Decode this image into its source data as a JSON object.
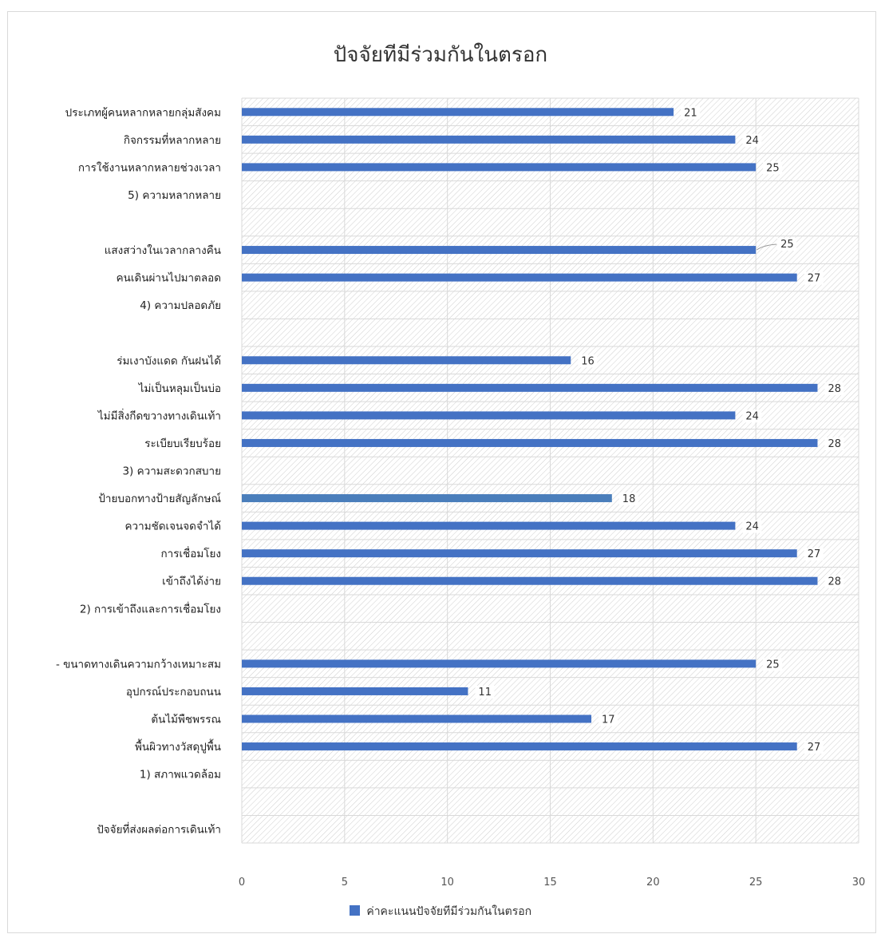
{
  "chart_data": {
    "type": "bar",
    "orientation": "horizontal",
    "title": "ปัจจัยทีมีร่วมกันในตรอก",
    "categories": [
      "ประเภทผู้คนหลากหลายกลุ่มสังคม",
      "กิจกรรมที่หลากหลาย",
      "การใช้งานหลากหลายช่วงเวลา",
      "5) ความหลากหลาย",
      "",
      "แสงสว่างในเวลากลางคืน",
      "คนเดินผ่านไปมาตลอด",
      "4) ความปลอดภัย",
      "",
      "ร่มเงาบังแดด กันฝนได้",
      "ไม่เป็นหลุมเป็นบ่อ",
      "ไม่มีสิ่งกีดขวางทางเดินเท้า",
      "ระเบียบเรียบร้อย",
      "3) ความสะดวกสบาย",
      "ป้ายบอกทางป้ายสัญลักษณ์",
      "ความชัดเจนจดจำได้",
      "การเชื่อมโยง",
      "เข้าถึงได้ง่าย",
      "2) การเข้าถึงและการเชื่อมโยง",
      "",
      "- ขนาดทางเดินความกว้างเหมาะสม",
      "อุปกรณ์ประกอบถนน",
      "ต้นไม้พืชพรรณ",
      "พื้นผิวทางวัสดุปูพื้น",
      "1) สภาพแวดล้อม",
      "",
      "ปัจจัยที่ส่งผลต่อการเดินเท้า"
    ],
    "series": [
      {
        "name": "ค่าคะแนนปัจจัยทีมีร่วมกันในตรอก",
        "color": "#4472c4",
        "values": [
          21,
          24,
          25,
          null,
          null,
          25,
          27,
          null,
          null,
          16,
          28,
          24,
          28,
          null,
          18,
          24,
          27,
          28,
          null,
          null,
          25,
          11,
          17,
          27,
          null,
          null,
          null
        ]
      }
    ],
    "xlim": [
      0,
      30
    ],
    "xticks": [
      "0",
      "5",
      "10",
      "15",
      "20",
      "25",
      "30"
    ],
    "grid": true,
    "legend_position": "bottom",
    "highlight_color": "#4a7ebb",
    "highlight_index": 14
  }
}
